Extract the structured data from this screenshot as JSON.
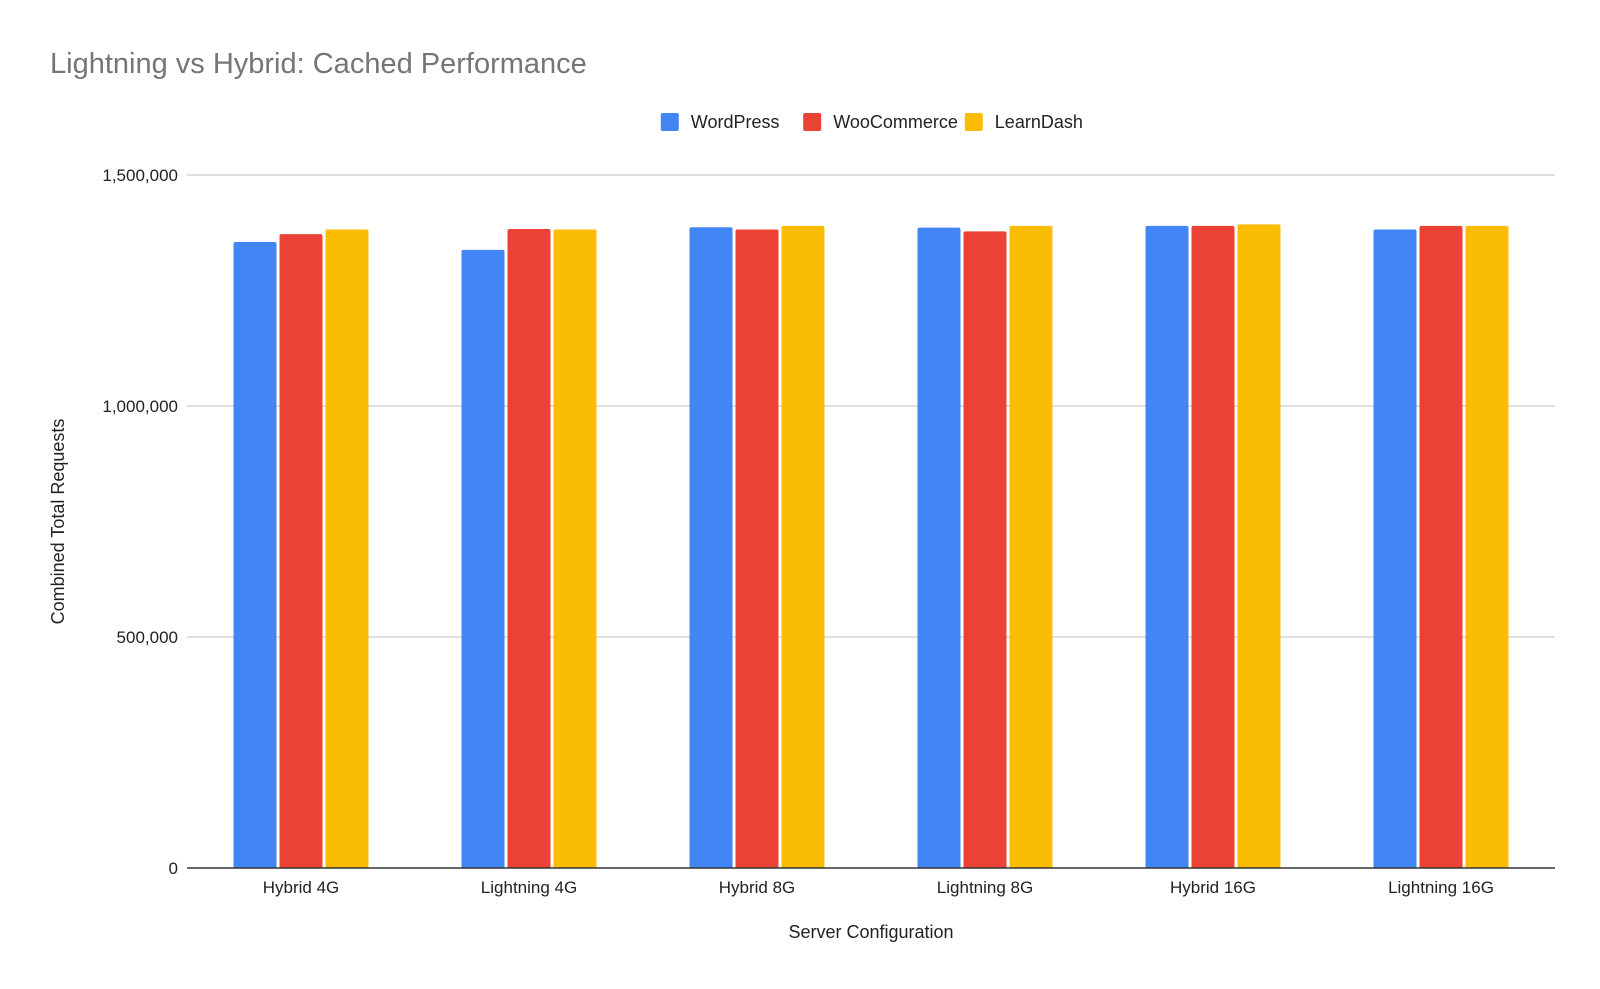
{
  "chart_data": {
    "type": "bar",
    "title": "Lightning vs Hybrid: Cached Performance",
    "xlabel": "Server Configuration",
    "ylabel": "Combined Total Requests",
    "categories": [
      "Hybrid 4G",
      "Lightning 4G",
      "Hybrid 8G",
      "Lightning 8G",
      "Hybrid 16G",
      "Lightning 16G"
    ],
    "series": [
      {
        "name": "WordPress",
        "color": "#4285F4",
        "values": [
          1355000,
          1338000,
          1387000,
          1386000,
          1390000,
          1382000
        ]
      },
      {
        "name": "WooCommerce",
        "color": "#EA4335",
        "values": [
          1372000,
          1383000,
          1382000,
          1378000,
          1390000,
          1390000
        ]
      },
      {
        "name": "LearnDash",
        "color": "#FBBC04",
        "values": [
          1382000,
          1382000,
          1390000,
          1390000,
          1393000,
          1390000
        ]
      }
    ],
    "ylim": [
      0,
      1500000
    ],
    "yticks": [
      0,
      500000,
      1000000,
      1500000
    ],
    "ytick_labels": [
      "0",
      "500,000",
      "1,000,000",
      "1,500,000"
    ],
    "grid": true,
    "legend_position": "top-center"
  }
}
